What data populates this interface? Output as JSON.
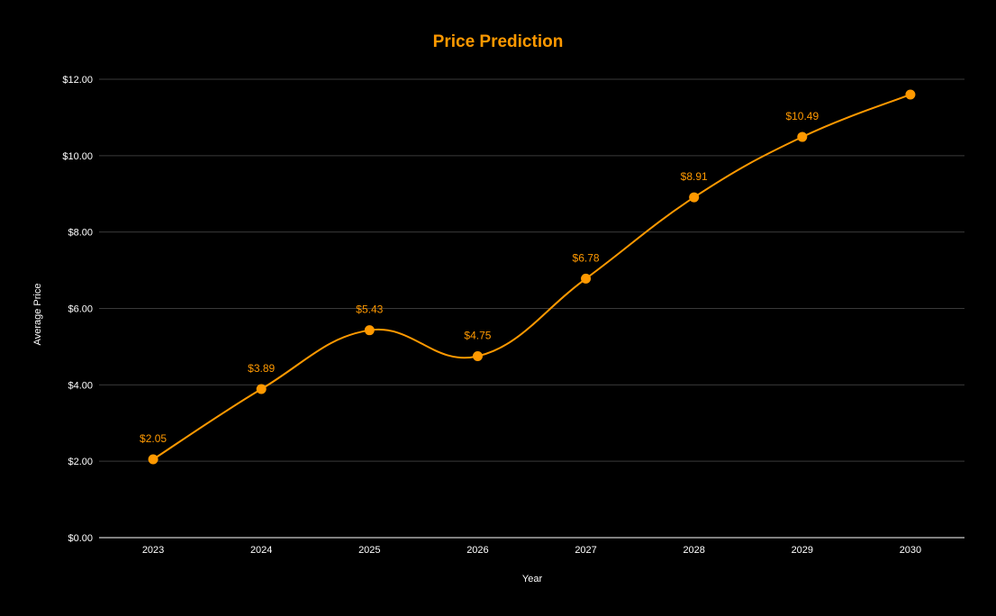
{
  "chart_data": {
    "type": "line",
    "title": "Price Prediction",
    "xlabel": "Year",
    "ylabel": "Average Price",
    "categories": [
      "2023",
      "2024",
      "2025",
      "2026",
      "2027",
      "2028",
      "2029",
      "2030"
    ],
    "series": [
      {
        "values": [
          2.05,
          3.89,
          5.43,
          4.75,
          6.78,
          8.91,
          10.49,
          11.6
        ],
        "data_labels": [
          "$2.05",
          "$3.89",
          "$5.43",
          "$4.75",
          "$6.78",
          "$8.91",
          "$10.49",
          ""
        ]
      }
    ],
    "y_ticks": [
      {
        "value": 0,
        "label": "$0.00"
      },
      {
        "value": 2,
        "label": "$2.00"
      },
      {
        "value": 4,
        "label": "$4.00"
      },
      {
        "value": 6,
        "label": "$6.00"
      },
      {
        "value": 8,
        "label": "$8.00"
      },
      {
        "value": 10,
        "label": "$10.00"
      },
      {
        "value": 12,
        "label": "$12.00"
      }
    ],
    "ylim": [
      0,
      12
    ],
    "grid": true,
    "smooth": true,
    "legend": "none",
    "colors": {
      "background": "#000000",
      "series": "#ff9900",
      "title": "#ff9900",
      "text": "#ffffff",
      "grid": "#3a3a3a",
      "baseline": "#ffffff"
    }
  }
}
